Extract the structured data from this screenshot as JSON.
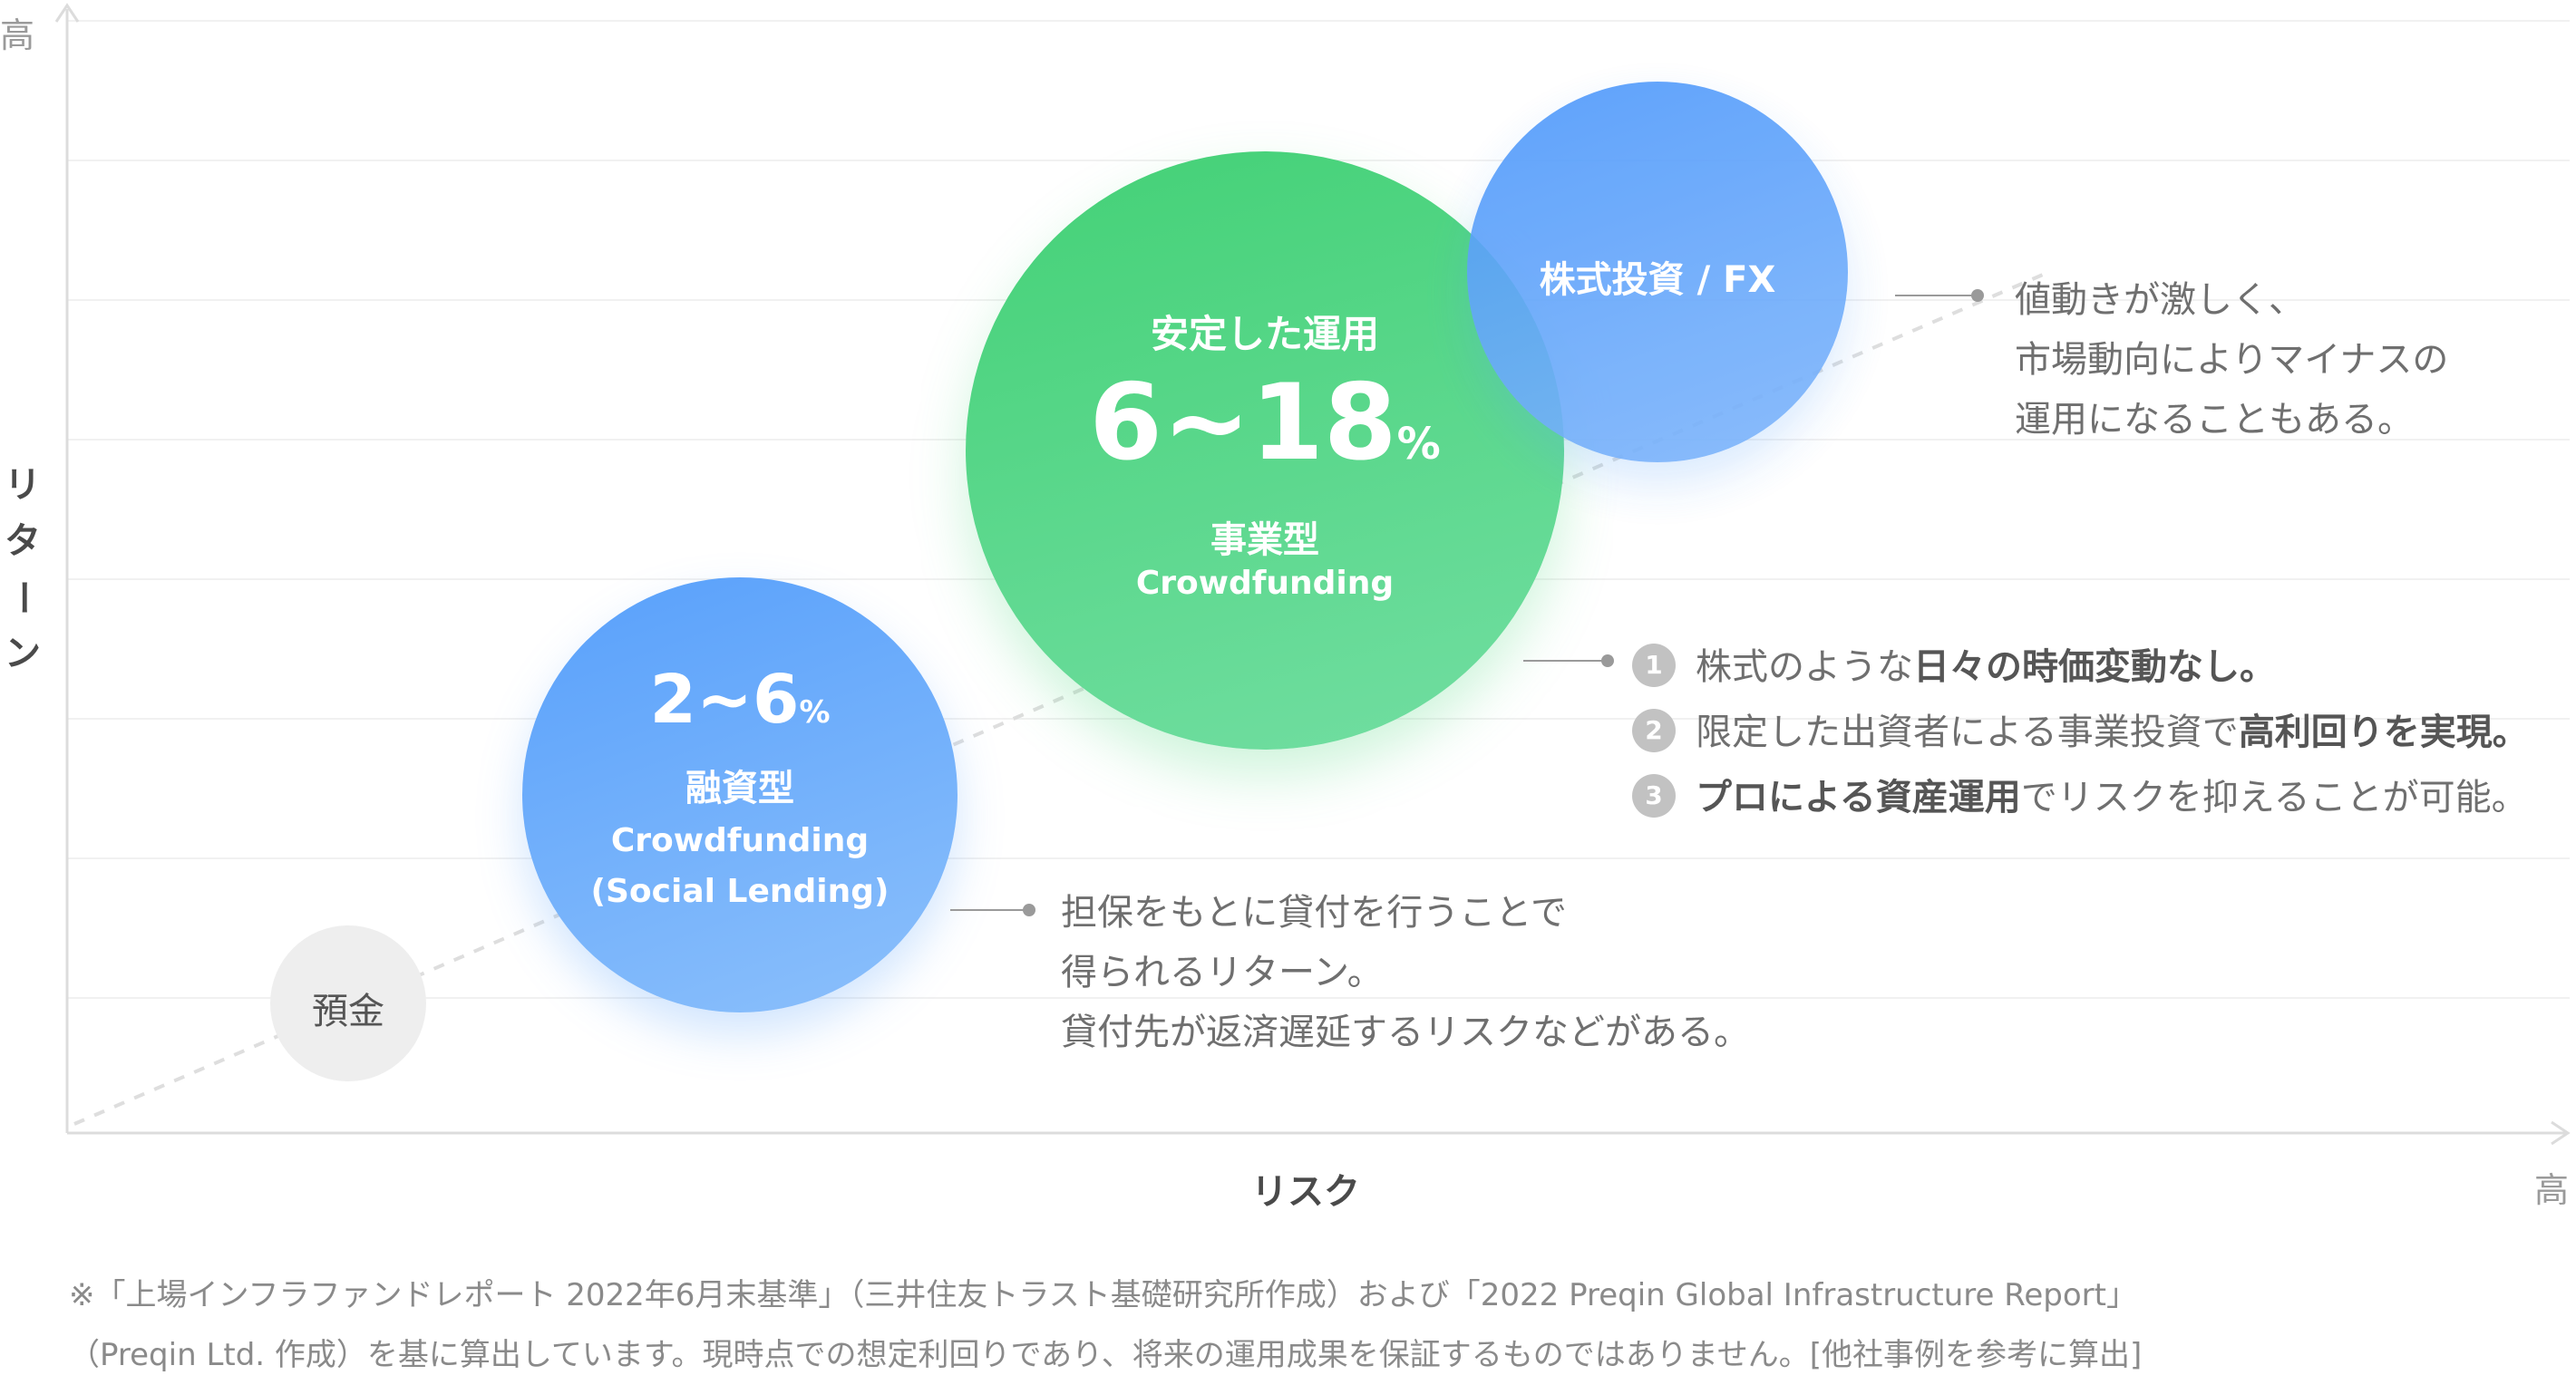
{
  "axes": {
    "x_label": "リスク",
    "y_label_chars": [
      "リ",
      "タ",
      "ー",
      "ン"
    ],
    "x_high": "高",
    "y_high": "高"
  },
  "bubbles": {
    "deposit": {
      "label": "預金"
    },
    "loan": {
      "range_main": "2~6",
      "range_unit": "%",
      "type": "融資型",
      "sub1": "Crowdfunding",
      "sub2": "(Social Lending)"
    },
    "business": {
      "title": "安定した運用",
      "range_main": "6~18",
      "range_unit": "%",
      "type": "事業型",
      "sub1": "Crowdfunding"
    },
    "stock": {
      "label": "株式投資 / FX"
    }
  },
  "annotations": {
    "stock": [
      "値動きが激しく、",
      "市場動向によりマイナスの",
      "運用になることもある。"
    ],
    "loan": [
      "担保をもとに貸付を行うことで",
      "得られるリターン。",
      "貸付先が返済遅延するリスクなどがある。"
    ],
    "business": [
      {
        "num": "1",
        "pre": "株式のような",
        "bold": "日々の時価変動なし。",
        "post": ""
      },
      {
        "num": "2",
        "pre": "限定した出資者による事業投資で",
        "bold": "高利回りを実現。",
        "post": ""
      },
      {
        "num": "3",
        "pre": "",
        "bold": "プロによる資産運用",
        "post": "でリスクを抑えることが可能。"
      }
    ]
  },
  "footnote": [
    "※「上場インフラファンドレポート 2022年6月末基準」（三井住友トラスト基礎研究所作成）および「2022 Preqin Global Infrastructure Report」",
    "（Preqin Ltd. 作成）を基に算出しています。現時点での想定利回りであり、将来の運用成果を保証するものではありません。[他社事例を参考に算出]"
  ],
  "colors": {
    "green": "#4fd67e",
    "blue": "#5aa3fa",
    "deposit": "#eeeeee",
    "axis": "#dcdcdc"
  }
}
